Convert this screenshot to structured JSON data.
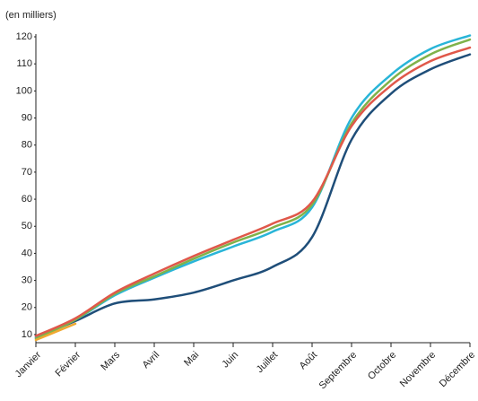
{
  "chart_data": {
    "type": "line",
    "ylabel": "(en milliers)",
    "categories": [
      "Janvier",
      "Février",
      "Mars",
      "Avril",
      "Mai",
      "Juin",
      "Juillet",
      "Août",
      "Septembre",
      "Octobre",
      "Novembre",
      "Décembre"
    ],
    "series": [
      {
        "color": "#1f4e79",
        "values": [
          9,
          15,
          21.5,
          23,
          25.5,
          30,
          35,
          46,
          82,
          99,
          108,
          113.5
        ]
      },
      {
        "color": "#29b5d8",
        "values": [
          9,
          15.5,
          24.5,
          31,
          37,
          42.5,
          48,
          57,
          90,
          106,
          115.5,
          120.5
        ]
      },
      {
        "color": "#7fb24a",
        "values": [
          8.5,
          15.5,
          25,
          31.5,
          38,
          44,
          49.5,
          58,
          88,
          104,
          113.5,
          119
        ]
      },
      {
        "color": "#e0584a",
        "values": [
          9.5,
          16,
          25.5,
          32.5,
          39,
          45,
          51,
          59,
          87,
          102,
          111,
          116
        ]
      },
      {
        "color": "#f0a830",
        "values": [
          8,
          14,
          null,
          null,
          null,
          null,
          null,
          null,
          null,
          null,
          null,
          null
        ]
      }
    ],
    "ylim": [
      7,
      121
    ],
    "yticks": [
      10,
      20,
      30,
      40,
      50,
      60,
      70,
      80,
      90,
      100,
      110,
      120
    ]
  }
}
